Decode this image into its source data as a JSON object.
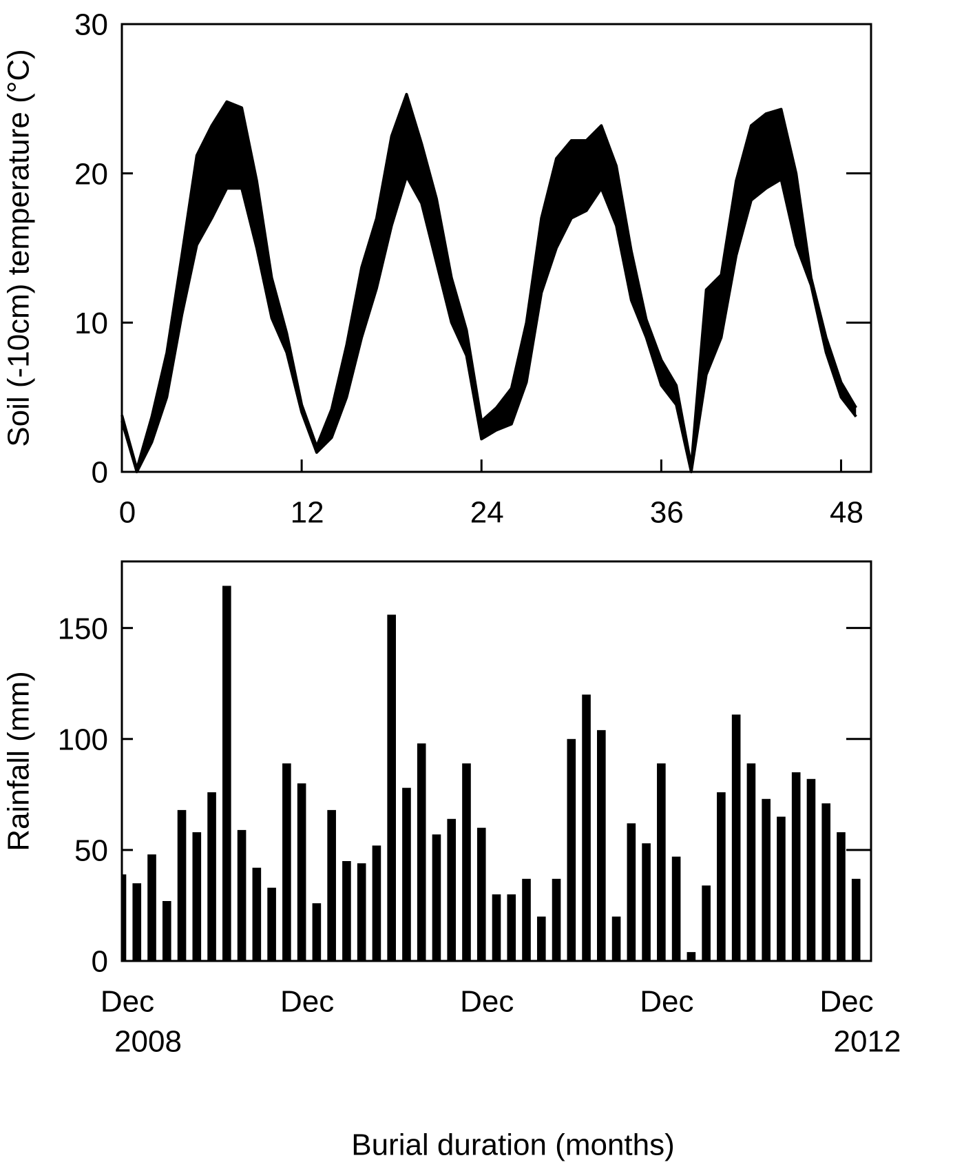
{
  "chart_data": [
    {
      "type": "band",
      "ylabel": "Soil (-10cm) temperature (°C)",
      "color": "#000000",
      "x": [
        0,
        1,
        2,
        3,
        4,
        5,
        6,
        7,
        8,
        9,
        10,
        11,
        12,
        13,
        14,
        15,
        16,
        17,
        18,
        19,
        20,
        21,
        22,
        23,
        24,
        25,
        26,
        27,
        28,
        29,
        30,
        31,
        32,
        33,
        34,
        35,
        36,
        37,
        38,
        39,
        40,
        41,
        42,
        43,
        44,
        45,
        46,
        47,
        48,
        49
      ],
      "series": [
        {
          "values": [
            3.8,
            0.2,
            3.7,
            8,
            14.5,
            21.2,
            23.2,
            24.8,
            24.4,
            19.5,
            13,
            9.3,
            4.5,
            1.7,
            4.2,
            8.5,
            13.7,
            17,
            22.5,
            25.3,
            22,
            18.3,
            13,
            9.5,
            3.4,
            4.3,
            5.6,
            10,
            17,
            21,
            22.2,
            22.2,
            23.2,
            20.5,
            14.8,
            10.2,
            7.5,
            5.8,
            0.4,
            12.2,
            13.2,
            19.5,
            23.2,
            24,
            24.3,
            20,
            13,
            9,
            6,
            4.3
          ]
        },
        {
          "values": [
            3.4,
            0,
            2,
            5,
            10.5,
            15.2,
            17,
            19,
            19,
            15,
            10.3,
            8,
            4,
            1.3,
            2.3,
            5,
            9,
            12.3,
            16.5,
            19.8,
            18,
            14,
            10,
            7.8,
            2.2,
            2.8,
            3.2,
            6,
            12,
            15,
            17,
            17.5,
            19,
            16.5,
            11.5,
            9,
            5.8,
            4.5,
            0,
            6.5,
            9,
            14.5,
            18.2,
            19,
            19.6,
            15.2,
            12.5,
            8,
            5,
            3.7
          ]
        }
      ],
      "xlim": [
        0,
        50
      ],
      "xticks": [
        0,
        12,
        24,
        36,
        48
      ],
      "ylim": [
        0,
        30
      ],
      "yticks": [
        0,
        10,
        20,
        30
      ]
    },
    {
      "type": "bar",
      "ylabel": "Rainfall (mm)",
      "xlabel": "Burial duration (months)",
      "color": "#000000",
      "x": [
        0,
        1,
        2,
        3,
        4,
        5,
        6,
        7,
        8,
        9,
        10,
        11,
        12,
        13,
        14,
        15,
        16,
        17,
        18,
        19,
        20,
        21,
        22,
        23,
        24,
        25,
        26,
        27,
        28,
        29,
        30,
        31,
        32,
        33,
        34,
        35,
        36,
        37,
        38,
        39,
        40,
        41,
        42,
        43,
        44,
        45,
        46,
        47,
        48,
        49
      ],
      "values": [
        39,
        35,
        48,
        27,
        68,
        58,
        76,
        169,
        59,
        42,
        33,
        89,
        80,
        26,
        68,
        45,
        44,
        52,
        156,
        78,
        98,
        57,
        64,
        89,
        60,
        30,
        30,
        37,
        20,
        37,
        100,
        120,
        104,
        20,
        62,
        53,
        89,
        47,
        4,
        34,
        76,
        111,
        89,
        73,
        65,
        85,
        82,
        71,
        58,
        37
      ],
      "xlim": [
        0,
        50
      ],
      "xticks": [
        {
          "value": 0,
          "label": "Dec"
        },
        {
          "value": 12,
          "label": "Dec"
        },
        {
          "value": 24,
          "label": "Dec"
        },
        {
          "value": 36,
          "label": "Dec"
        },
        {
          "value": 48,
          "label": "Dec"
        }
      ],
      "year_labels": [
        {
          "value": 0,
          "label": "2008"
        },
        {
          "value": 48,
          "label": "2012"
        }
      ],
      "ylim": [
        0,
        180
      ],
      "yticks": [
        0,
        50,
        100,
        150
      ]
    }
  ]
}
